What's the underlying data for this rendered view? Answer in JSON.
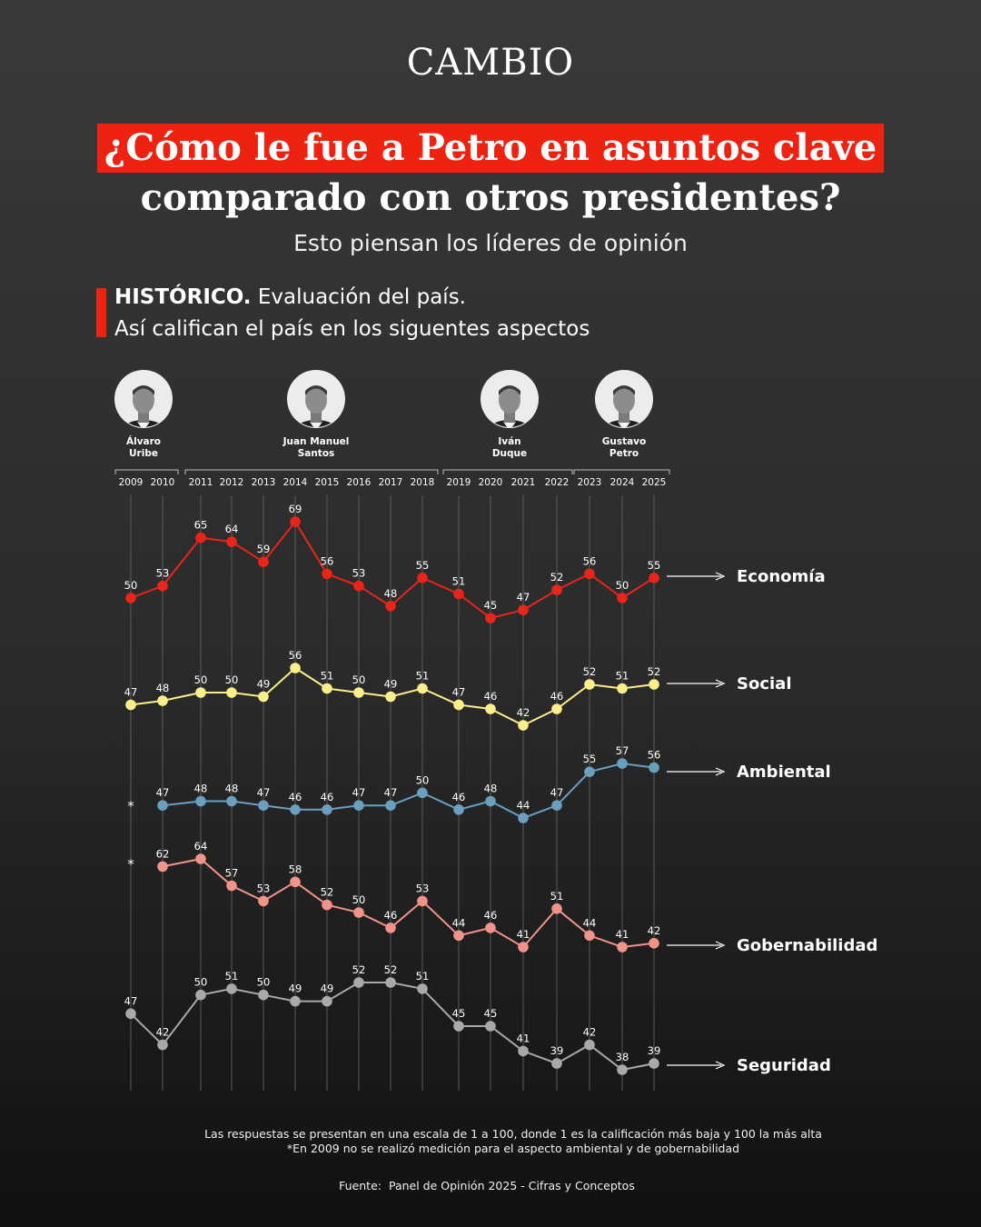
{
  "logo": "CAMBIO",
  "title_line1": "¿Cómo le fue a Petro en asuntos clave",
  "title_line2": "comparado con otros presidentes?",
  "subtitle": "Esto piensan los líderes de opinión",
  "section": {
    "heading_bold": "HISTÓRICO.",
    "heading_rest": " Evaluación del país.",
    "line2": "Así califican el país en los siguentes aspectos"
  },
  "notes": {
    "scale": "Las respuestas se presentan en una escala de 1 a 100, donde 1 es la calificación más baja y 100 la más alta",
    "missing": "*En 2009 no se realizó medición para el aspecto ambiental y de gobernabilidad",
    "source_label": "Fuente:",
    "source_text": "Panel de Opinión 2025 - Cifras y Conceptos"
  },
  "colors": {
    "economia": "#e8251b",
    "social": "#fbef8c",
    "ambiental": "#6a9fc0",
    "gobernabilidad": "#f0948a",
    "seguridad": "#a9a9a9",
    "accent": "#ee2211"
  },
  "presidents": [
    {
      "name_line1": "Álvaro",
      "name_line2": "Uribe",
      "years": [
        "2009",
        "2010"
      ]
    },
    {
      "name_line1": "Juan Manuel",
      "name_line2": "Santos",
      "years": [
        "2011",
        "2012",
        "2013",
        "2014",
        "2015",
        "2016",
        "2017",
        "2018"
      ]
    },
    {
      "name_line1": "Iván",
      "name_line2": "Duque",
      "years": [
        "2019",
        "2020",
        "2021",
        "2022"
      ]
    },
    {
      "name_line1": "Gustavo",
      "name_line2": "Petro",
      "years": [
        "2023",
        "2024",
        "2025"
      ]
    }
  ],
  "chart_data": {
    "type": "line",
    "x": [
      "2009",
      "2010",
      "2011",
      "2012",
      "2013",
      "2014",
      "2015",
      "2016",
      "2017",
      "2018",
      "2019",
      "2020",
      "2021",
      "2022",
      "2023",
      "2024",
      "2025"
    ],
    "missing_marker": "*",
    "series": [
      {
        "name": "Economía",
        "color": "#e8251b",
        "values": [
          50,
          53,
          65,
          64,
          59,
          69,
          56,
          53,
          48,
          55,
          51,
          45,
          47,
          52,
          56,
          50,
          55
        ]
      },
      {
        "name": "Social",
        "color": "#fbef8c",
        "values": [
          47,
          48,
          50,
          50,
          49,
          56,
          51,
          50,
          49,
          51,
          47,
          46,
          42,
          46,
          52,
          51,
          52
        ]
      },
      {
        "name": "Ambiental",
        "color": "#6a9fc0",
        "values": [
          null,
          47,
          48,
          48,
          47,
          46,
          46,
          47,
          47,
          50,
          46,
          48,
          44,
          47,
          55,
          57,
          56
        ]
      },
      {
        "name": "Gobernabilidad",
        "color": "#f0948a",
        "values": [
          null,
          62,
          64,
          57,
          53,
          58,
          52,
          50,
          46,
          53,
          44,
          46,
          41,
          51,
          44,
          41,
          42
        ]
      },
      {
        "name": "Seguridad",
        "color": "#a9a9a9",
        "values": [
          47,
          42,
          50,
          51,
          50,
          49,
          49,
          52,
          52,
          51,
          45,
          45,
          41,
          39,
          42,
          38,
          39
        ]
      }
    ]
  }
}
